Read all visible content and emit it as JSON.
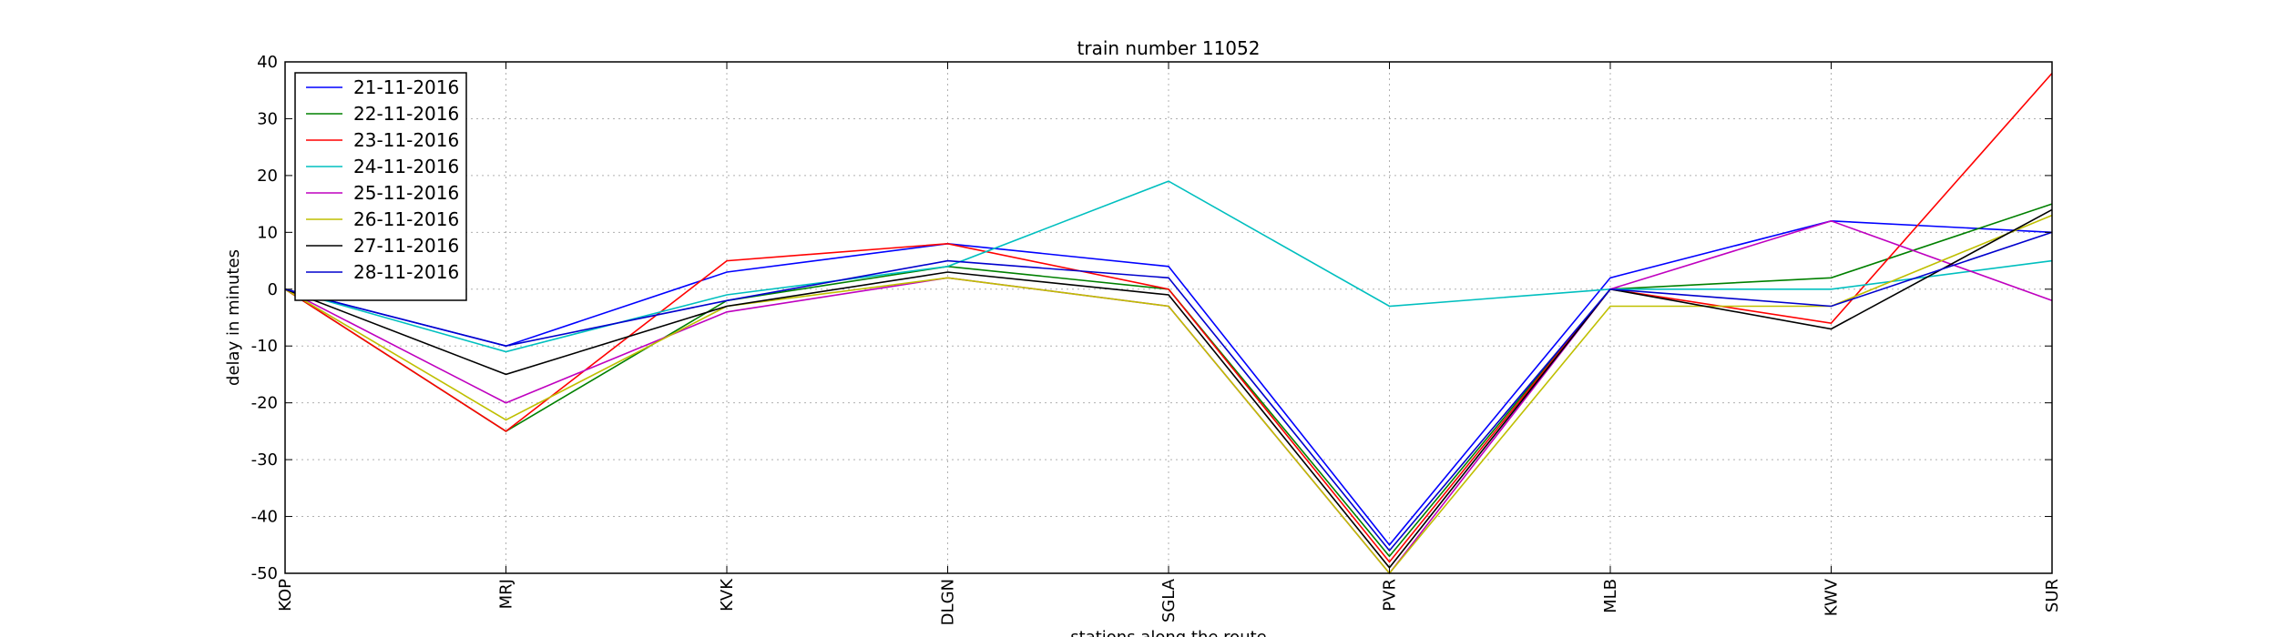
{
  "chart_data": {
    "type": "line",
    "title": "train number 11052",
    "xlabel": "stations along the route",
    "ylabel": "delay in minutes",
    "categories": [
      "KOP",
      "MRJ",
      "KVK",
      "DLGN",
      "SGLA",
      "PVR",
      "MLB",
      "KWV",
      "SUR"
    ],
    "ylim": [
      -50,
      40
    ],
    "yticks": [
      -50,
      -40,
      -30,
      -20,
      -10,
      0,
      10,
      20,
      30,
      40
    ],
    "grid": true,
    "legend_position": "top-left",
    "series": [
      {
        "name": "21-11-2016",
        "color": "#0000ff",
        "values": [
          0,
          -10,
          3,
          8,
          4,
          -45,
          2,
          12,
          10
        ]
      },
      {
        "name": "22-11-2016",
        "color": "#008000",
        "values": [
          0,
          -25,
          -2,
          4,
          0,
          -47,
          0,
          2,
          15
        ]
      },
      {
        "name": "23-11-2016",
        "color": "#ff0000",
        "values": [
          0,
          -25,
          5,
          8,
          0,
          -48,
          0,
          -6,
          38
        ]
      },
      {
        "name": "24-11-2016",
        "color": "#00bfbf",
        "values": [
          0,
          -11,
          -1,
          4,
          19,
          -3,
          0,
          0,
          5
        ]
      },
      {
        "name": "25-11-2016",
        "color": "#bf00bf",
        "values": [
          0,
          -20,
          -4,
          2,
          -3,
          -50,
          0,
          12,
          -2
        ]
      },
      {
        "name": "26-11-2016",
        "color": "#bfbf00",
        "values": [
          0,
          -23,
          -3,
          2,
          -3,
          -50,
          -3,
          -3,
          13
        ]
      },
      {
        "name": "27-11-2016",
        "color": "#000000",
        "values": [
          0,
          -15,
          -3,
          3,
          -1,
          -49,
          0,
          -7,
          14
        ]
      },
      {
        "name": "28-11-2016",
        "color": "#0000cd",
        "values": [
          0,
          -10,
          -2,
          5,
          2,
          -46,
          0,
          -3,
          10
        ]
      }
    ]
  }
}
